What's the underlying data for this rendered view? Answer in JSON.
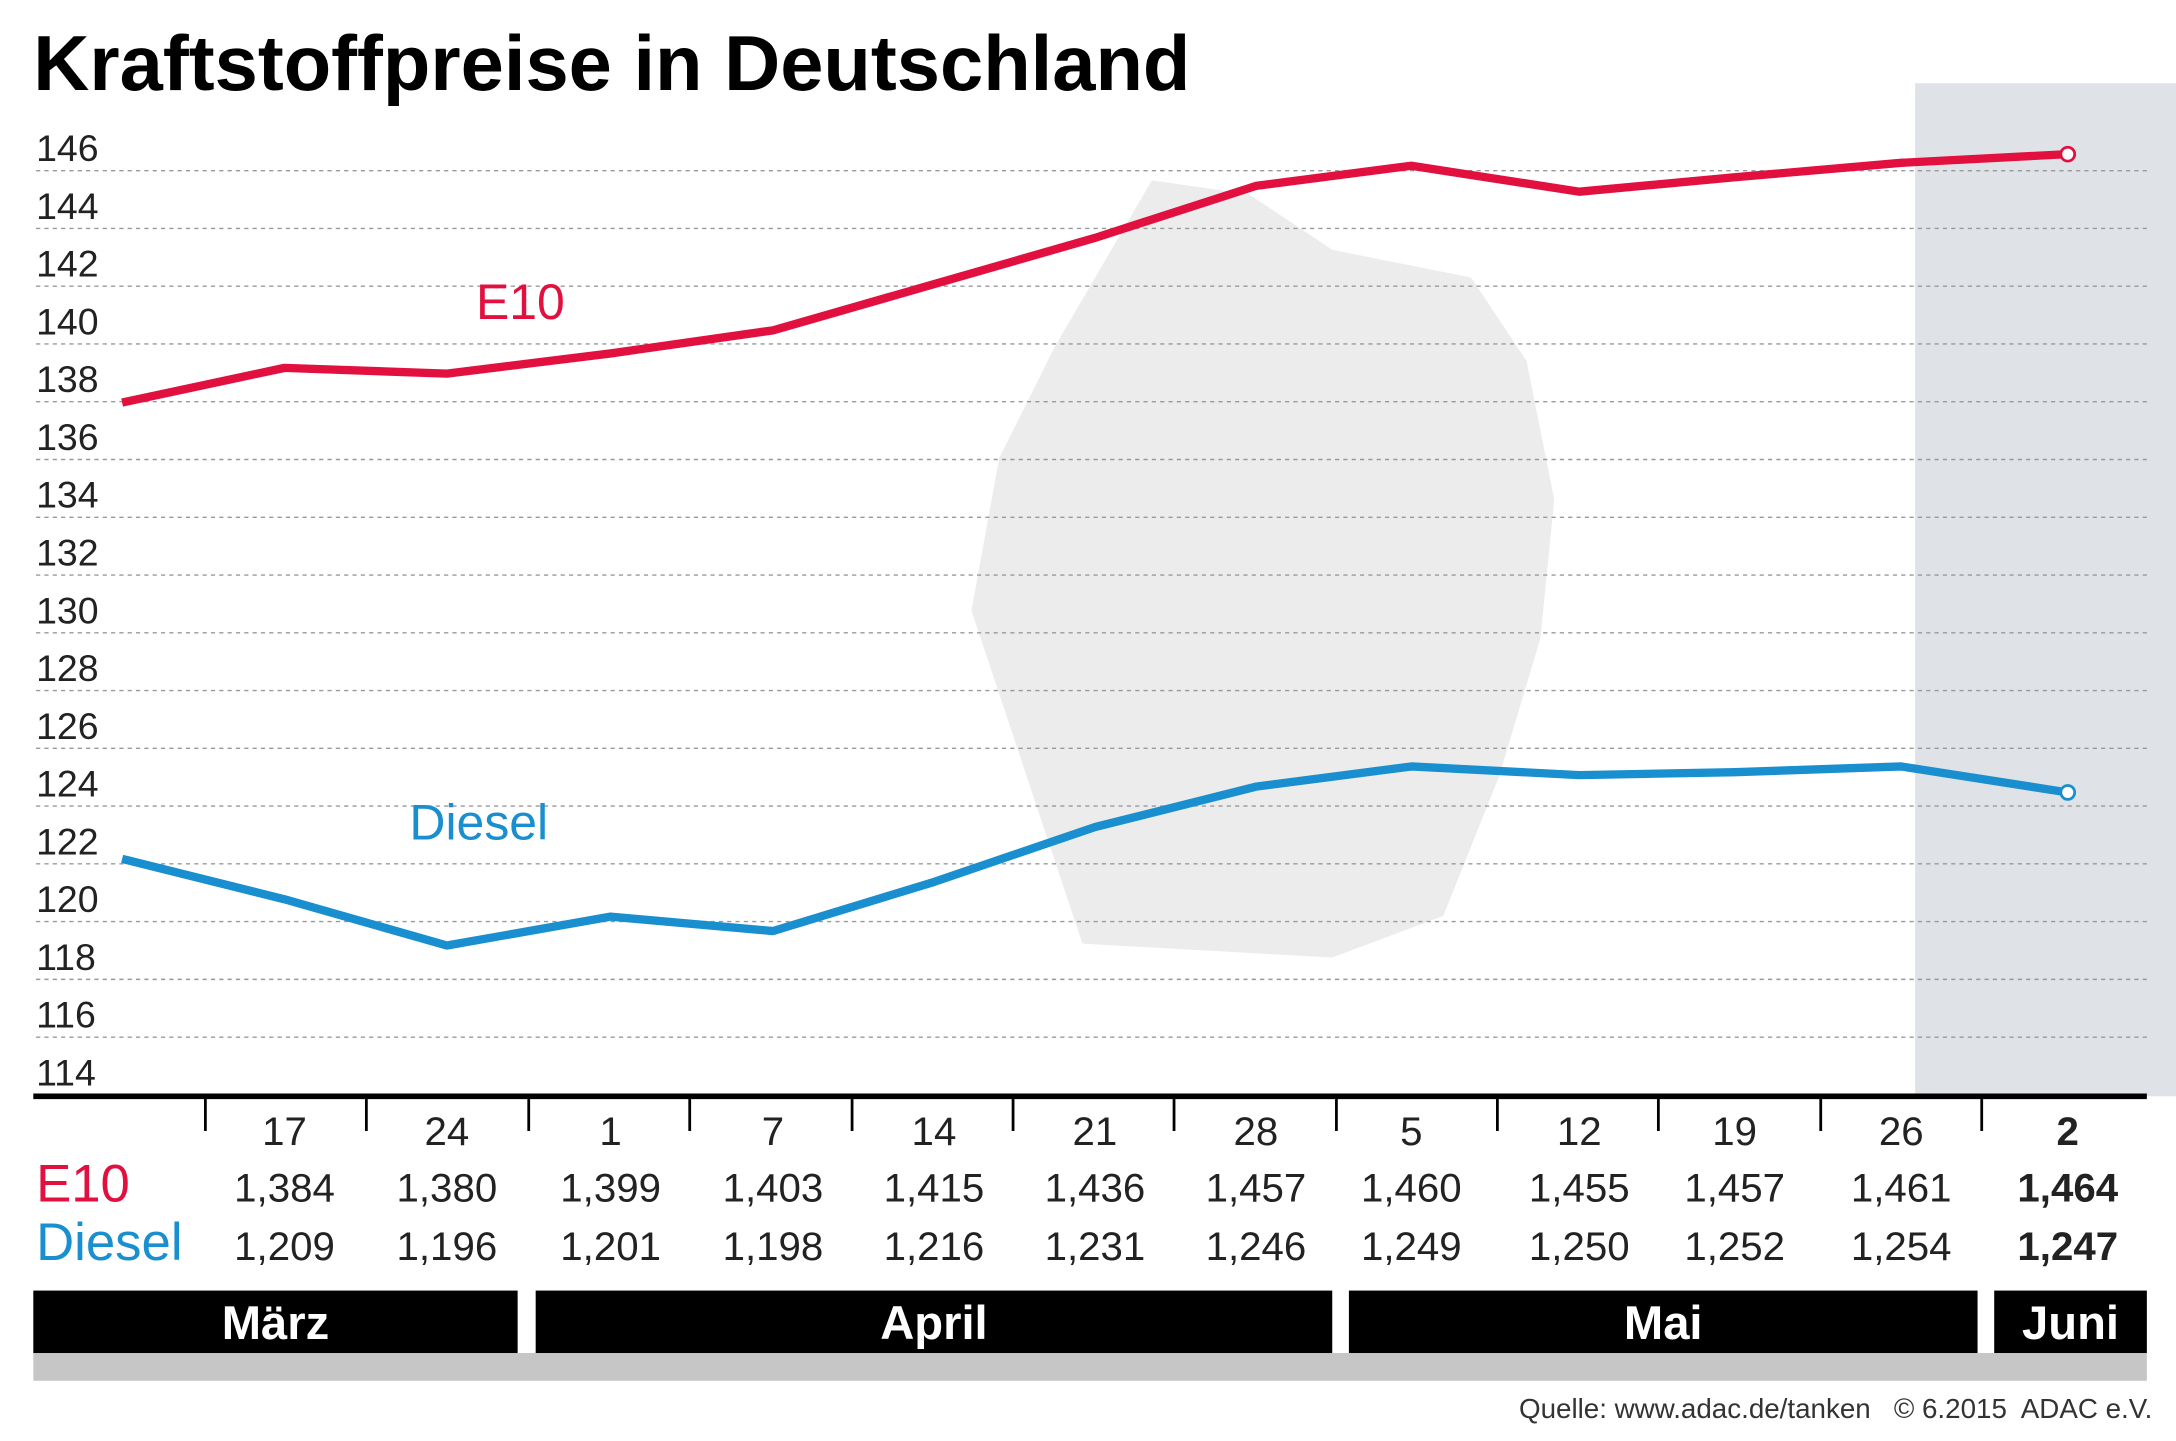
{
  "chart_data": {
    "type": "line",
    "title": "Kraftstoffpreise in Deutschland",
    "categories": [
      null,
      "17",
      "24",
      "1",
      "7",
      "14",
      "21",
      "28",
      "5",
      "12",
      "19",
      "26",
      "2"
    ],
    "series": [
      {
        "name": "E10",
        "color": "#e2103f",
        "values": [
          137.3,
          138.5,
          138.3,
          139.0,
          139.8,
          141.4,
          143.0,
          144.8,
          145.5,
          144.6,
          145.1,
          145.6,
          145.9
        ]
      },
      {
        "name": "Diesel",
        "color": "#1a8fd0",
        "values": [
          121.5,
          120.1,
          118.5,
          119.5,
          119.0,
          120.7,
          122.6,
          124.0,
          124.7,
          124.4,
          124.5,
          124.7,
          123.8
        ]
      }
    ],
    "ylim": [
      114,
      146
    ],
    "yticks": [
      114,
      116,
      118,
      120,
      122,
      124,
      126,
      128,
      130,
      132,
      134,
      136,
      138,
      140,
      142,
      144,
      146
    ],
    "grid": true,
    "table": {
      "rows": [
        {
          "name": "E10",
          "values": [
            "1,384",
            "1,380",
            "1,399",
            "1,403",
            "1,415",
            "1,436",
            "1,457",
            "1,460",
            "1,455",
            "1,457",
            "1,461",
            "1,464"
          ]
        },
        {
          "name": "Diesel",
          "values": [
            "1,209",
            "1,196",
            "1,201",
            "1,198",
            "1,216",
            "1,231",
            "1,246",
            "1,249",
            "1,250",
            "1,252",
            "1,254",
            "1,247"
          ]
        }
      ]
    },
    "months": [
      "März",
      "April",
      "Mai",
      "Juni"
    ],
    "source": "Quelle: www.adac.de/tanken   © 6.2015  ADAC e.V."
  }
}
